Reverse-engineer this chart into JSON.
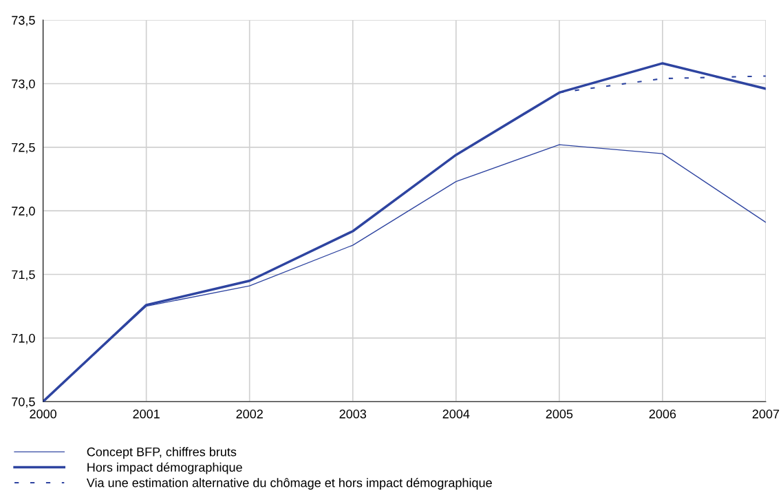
{
  "chart_data": {
    "type": "line",
    "x": [
      2000,
      2001,
      2002,
      2003,
      2004,
      2005,
      2006,
      2007
    ],
    "series": [
      {
        "name": "Concept BFP, chiffres bruts",
        "color": "#2e44a0",
        "values": [
          70.5,
          71.25,
          71.41,
          71.73,
          72.23,
          72.52,
          72.45,
          71.91
        ]
      },
      {
        "name": "Hors impact démographique",
        "color": "#2e44a0",
        "values": [
          70.5,
          71.26,
          71.45,
          71.84,
          72.44,
          72.93,
          73.16,
          72.96
        ]
      },
      {
        "name": "Via une estimation alternative du chômage et hors impact démographique",
        "color": "#2e44a0",
        "x": [
          2005,
          2006,
          2007
        ],
        "values": [
          72.93,
          73.04,
          73.06
        ],
        "line_style": "dashed"
      }
    ],
    "xlim": [
      2000,
      2007
    ],
    "xticks": [
      2000,
      2001,
      2002,
      2003,
      2004,
      2005,
      2006,
      2007
    ],
    "ylim": [
      70.5,
      73.5
    ],
    "yticks": [
      {
        "value": 70.5,
        "label": "70,5"
      },
      {
        "value": 71.0,
        "label": "71,0"
      },
      {
        "value": 71.5,
        "label": "71,5"
      },
      {
        "value": 72.0,
        "label": "72,0"
      },
      {
        "value": 72.5,
        "label": "72,5"
      },
      {
        "value": 73.0,
        "label": "73,0"
      },
      {
        "value": 73.5,
        "label": "73,5"
      }
    ],
    "grid": true,
    "legend": "bottom",
    "line_style": "solid",
    "marker": "none"
  }
}
